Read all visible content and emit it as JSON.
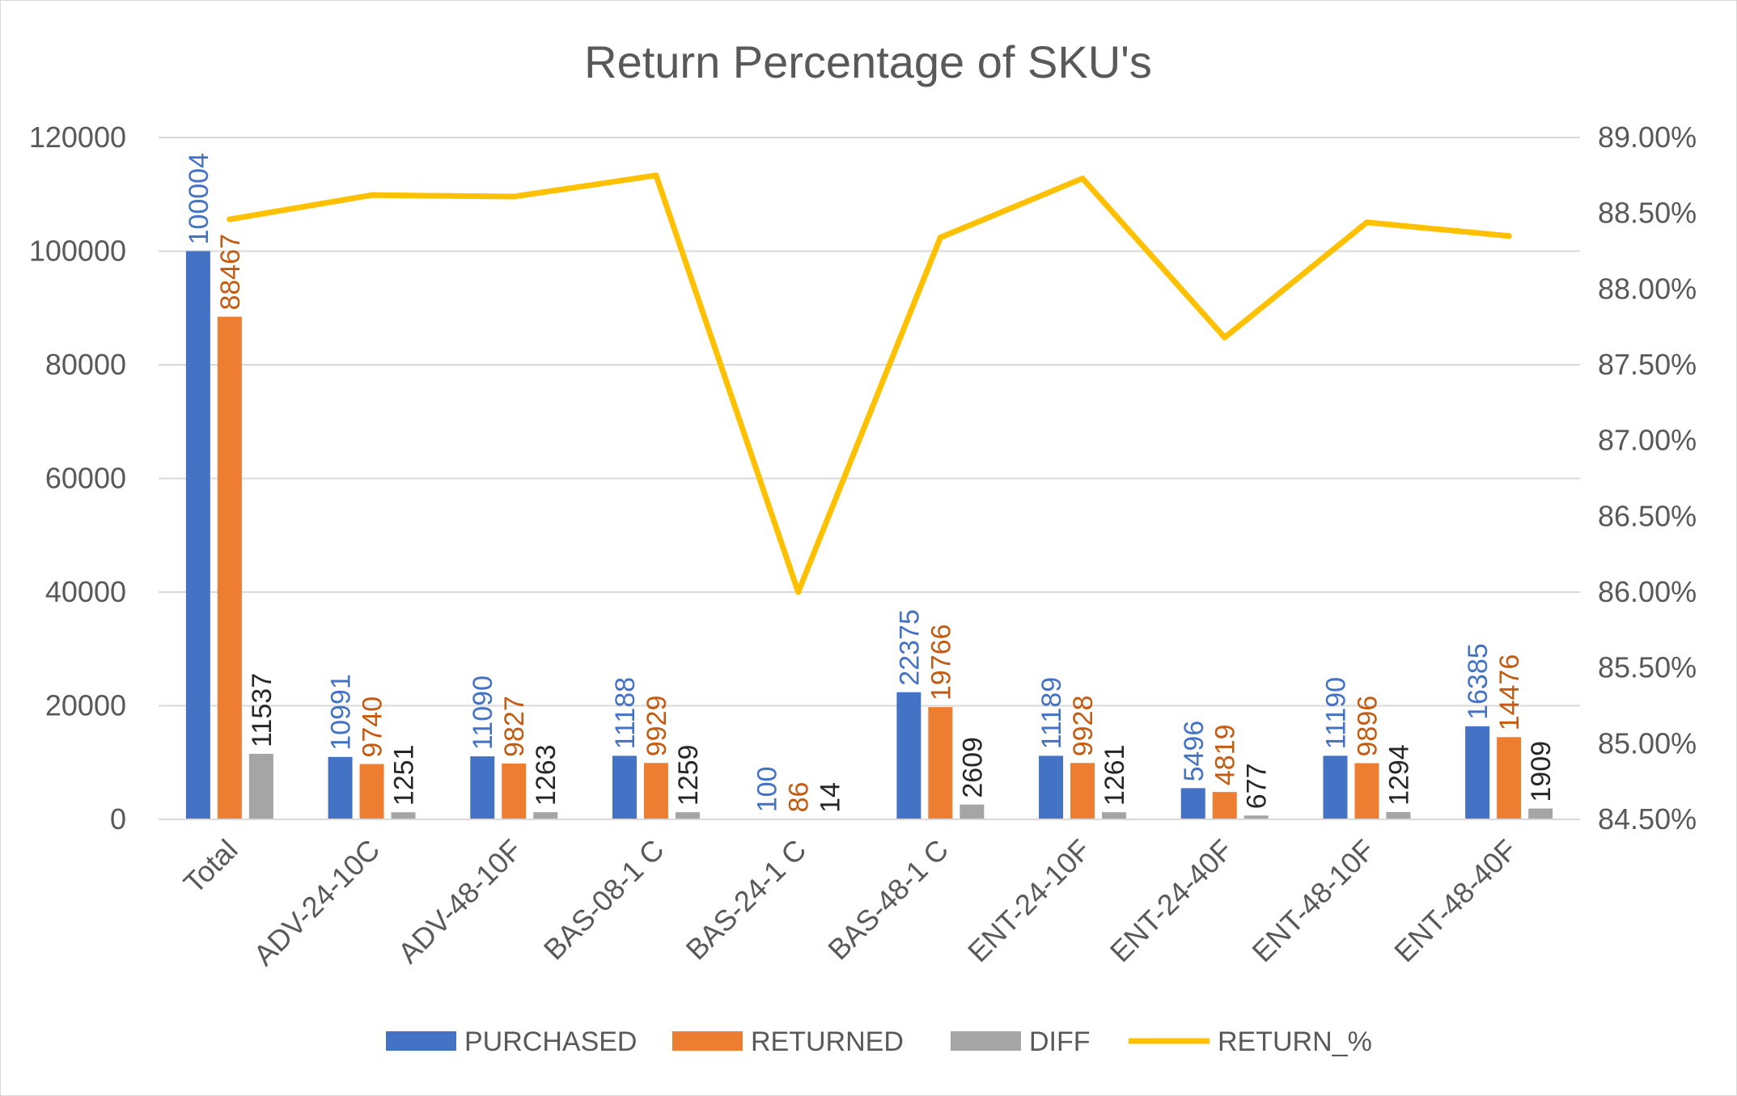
{
  "chart_data": {
    "type": "bar",
    "title": "Return Percentage of SKU's",
    "categories": [
      "Total",
      "ADV-24-10C",
      "ADV-48-10F",
      "BAS-08-1 C",
      "BAS-24-1 C",
      "BAS-48-1 C",
      "ENT-24-10F",
      "ENT-24-40F",
      "ENT-48-10F",
      "ENT-48-40F"
    ],
    "series": [
      {
        "name": "PURCHASED",
        "type": "bar",
        "axis": "primary",
        "color": "#4472c4",
        "label_color": "#4472c4",
        "values": [
          100004,
          10991,
          11090,
          11188,
          100,
          22375,
          11189,
          5496,
          11190,
          16385
        ],
        "labels": [
          "100004",
          "10991",
          "11090",
          "11188",
          "100",
          "22375",
          "11189",
          "5496",
          "11190",
          "16385"
        ]
      },
      {
        "name": "RETURNED",
        "type": "bar",
        "axis": "primary",
        "color": "#ed7d31",
        "label_color": "#c55a11",
        "values": [
          88467,
          9740,
          9827,
          9929,
          86,
          19766,
          9928,
          4819,
          9896,
          14476
        ],
        "labels": [
          "88467",
          "9740",
          "9827",
          "9929",
          "86",
          "19766",
          "9928",
          "4819",
          "9896",
          "14476"
        ]
      },
      {
        "name": "DIFF",
        "type": "bar",
        "axis": "primary",
        "color": "#a5a5a5",
        "label_color": "#262626",
        "values": [
          11537,
          1251,
          1263,
          1259,
          14,
          2609,
          1261,
          677,
          1294,
          1909
        ],
        "labels": [
          "11537",
          "1251",
          "1263",
          "1259",
          "14",
          "2609",
          "1261",
          "677",
          "1294",
          "1909"
        ]
      },
      {
        "name": "RETURN_%",
        "type": "line",
        "axis": "secondary",
        "color": "#ffc000",
        "values": [
          88.46,
          88.62,
          88.61,
          88.75,
          86.0,
          88.34,
          88.73,
          87.68,
          88.44,
          88.35
        ]
      }
    ],
    "y_primary": {
      "min": 0,
      "max": 120000,
      "ticks": [
        "0",
        "20000",
        "40000",
        "60000",
        "80000",
        "100000",
        "120000"
      ]
    },
    "y_secondary": {
      "min": 84.5,
      "max": 89.0,
      "ticks": [
        "84.50%",
        "85.00%",
        "85.50%",
        "86.00%",
        "86.50%",
        "87.00%",
        "87.50%",
        "88.00%",
        "88.50%",
        "89.00%"
      ]
    },
    "grid": true,
    "legend_position": "bottom"
  }
}
